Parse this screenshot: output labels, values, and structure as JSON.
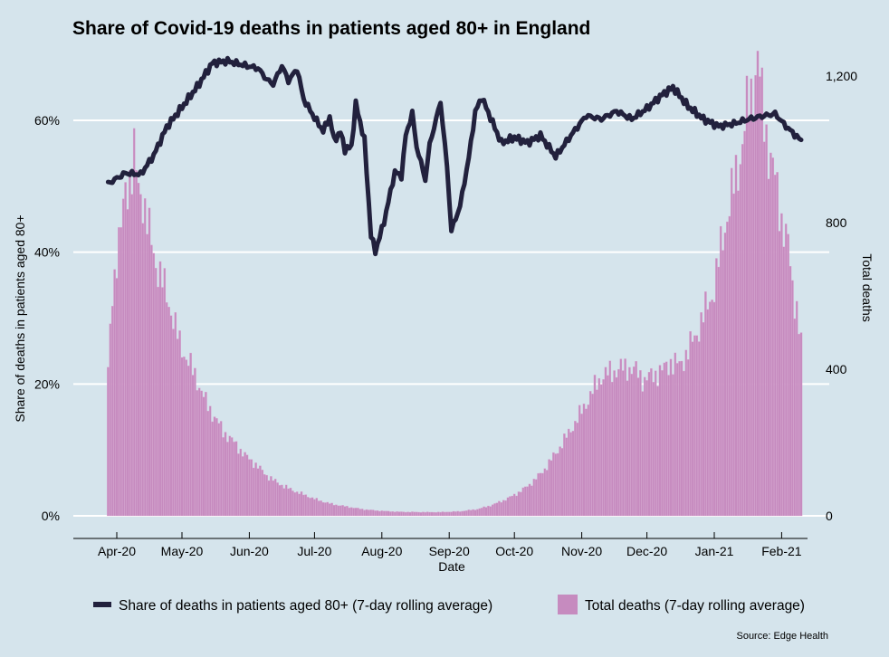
{
  "chart_data": {
    "type": "bar+line",
    "title": "Share of Covid-19 deaths in patients aged 80+ in England",
    "xlabel": "Date",
    "ylabel_left": "Share of deaths in patients aged 80+",
    "ylabel_right": "Total deaths",
    "source": "Source: Edge Health",
    "x_range": [
      "2020-03-20",
      "2021-02-22"
    ],
    "x_ticks": [
      {
        "date": "2020-04-01",
        "label": "Apr-20"
      },
      {
        "date": "2020-05-01",
        "label": "May-20"
      },
      {
        "date": "2020-06-01",
        "label": "Jun-20"
      },
      {
        "date": "2020-07-01",
        "label": "Jul-20"
      },
      {
        "date": "2020-08-01",
        "label": "Aug-20"
      },
      {
        "date": "2020-09-01",
        "label": "Sep-20"
      },
      {
        "date": "2020-10-01",
        "label": "Oct-20"
      },
      {
        "date": "2020-11-01",
        "label": "Nov-20"
      },
      {
        "date": "2020-12-01",
        "label": "Dec-20"
      },
      {
        "date": "2021-01-01",
        "label": "Jan-21"
      },
      {
        "date": "2021-02-01",
        "label": "Feb-21"
      }
    ],
    "y_left": {
      "range": [
        0,
        60
      ],
      "ticks": [
        0,
        20,
        40,
        60
      ],
      "tick_labels": [
        "0%",
        "20%",
        "40%",
        "60%"
      ]
    },
    "y_right": {
      "range": [
        0,
        1200
      ],
      "ticks": [
        0,
        400,
        800,
        1200
      ],
      "tick_labels": [
        "0",
        "400",
        "800",
        "1,200"
      ]
    },
    "grid": true,
    "legend_position": "bottom",
    "legend": [
      {
        "label": "Share of deaths in patients aged 80+ (7-day rolling average)",
        "type": "line",
        "color": "#22213d"
      },
      {
        "label": "Total deaths (7-day rolling average)",
        "type": "bar",
        "color": "#c68bbf"
      }
    ],
    "colors": {
      "background": "#d5e4ec",
      "line": "#22213d",
      "bar": "#c68bbf",
      "grid": "#ffffff"
    },
    "series": [
      {
        "name": "Share of deaths in patients aged 80+ (7-day rolling average)",
        "axis": "left",
        "unit": "%",
        "points": [
          [
            "2020-03-28",
            50.4
          ],
          [
            "2020-04-01",
            51.2
          ],
          [
            "2020-04-05",
            52.0
          ],
          [
            "2020-04-12",
            51.8
          ],
          [
            "2020-04-18",
            54.7
          ],
          [
            "2020-04-24",
            59.0
          ],
          [
            "2020-05-01",
            62.0
          ],
          [
            "2020-05-08",
            65.1
          ],
          [
            "2020-05-15",
            68.7
          ],
          [
            "2020-05-22",
            69.0
          ],
          [
            "2020-05-29",
            68.4
          ],
          [
            "2020-06-05",
            67.9
          ],
          [
            "2020-06-09",
            66.2
          ],
          [
            "2020-06-12",
            65.5
          ],
          [
            "2020-06-16",
            68.3
          ],
          [
            "2020-06-19",
            66.0
          ],
          [
            "2020-06-23",
            67.8
          ],
          [
            "2020-06-26",
            63.2
          ],
          [
            "2020-07-01",
            60.4
          ],
          [
            "2020-07-05",
            58.4
          ],
          [
            "2020-07-08",
            60.5
          ],
          [
            "2020-07-10",
            57.0
          ],
          [
            "2020-07-13",
            58.2
          ],
          [
            "2020-07-15",
            55.6
          ],
          [
            "2020-07-18",
            56.0
          ],
          [
            "2020-07-20",
            62.5
          ],
          [
            "2020-07-24",
            57.0
          ],
          [
            "2020-07-27",
            42.6
          ],
          [
            "2020-07-29",
            40.1
          ],
          [
            "2020-08-02",
            44.6
          ],
          [
            "2020-08-07",
            52.2
          ],
          [
            "2020-08-10",
            51.5
          ],
          [
            "2020-08-12",
            57.7
          ],
          [
            "2020-08-15",
            61.1
          ],
          [
            "2020-08-17",
            56.0
          ],
          [
            "2020-08-19",
            53.6
          ],
          [
            "2020-08-21",
            51.0
          ],
          [
            "2020-08-23",
            56.3
          ],
          [
            "2020-08-28",
            62.8
          ],
          [
            "2020-08-31",
            53.0
          ],
          [
            "2020-09-02",
            43.3
          ],
          [
            "2020-09-06",
            47.0
          ],
          [
            "2020-09-10",
            54.3
          ],
          [
            "2020-09-13",
            61.3
          ],
          [
            "2020-09-16",
            63.5
          ],
          [
            "2020-09-20",
            60.4
          ],
          [
            "2020-09-25",
            56.6
          ],
          [
            "2020-10-01",
            57.4
          ],
          [
            "2020-10-07",
            56.6
          ],
          [
            "2020-10-13",
            57.7
          ],
          [
            "2020-10-20",
            54.5
          ],
          [
            "2020-10-27",
            57.7
          ],
          [
            "2020-11-03",
            60.7
          ],
          [
            "2020-11-10",
            60.2
          ],
          [
            "2020-11-17",
            61.4
          ],
          [
            "2020-11-24",
            60.2
          ],
          [
            "2020-12-01",
            61.8
          ],
          [
            "2020-12-08",
            63.9
          ],
          [
            "2020-12-13",
            65.0
          ],
          [
            "2020-12-20",
            62.1
          ],
          [
            "2020-12-27",
            60.2
          ],
          [
            "2021-01-03",
            59.1
          ],
          [
            "2021-01-10",
            59.5
          ],
          [
            "2021-01-17",
            60.2
          ],
          [
            "2021-01-24",
            60.7
          ],
          [
            "2021-01-29",
            61.0
          ],
          [
            "2021-02-03",
            59.1
          ],
          [
            "2021-02-10",
            56.9
          ]
        ]
      },
      {
        "name": "Total deaths (7-day rolling average)",
        "axis": "right",
        "unit": "deaths",
        "points": [
          [
            "2020-03-28",
            390
          ],
          [
            "2020-03-30",
            610
          ],
          [
            "2020-04-01",
            710
          ],
          [
            "2020-04-03",
            780
          ],
          [
            "2020-04-05",
            890
          ],
          [
            "2020-04-08",
            940
          ],
          [
            "2020-04-09",
            980
          ],
          [
            "2020-04-11",
            890
          ],
          [
            "2020-04-13",
            870
          ],
          [
            "2020-04-16",
            770
          ],
          [
            "2020-04-19",
            690
          ],
          [
            "2020-04-22",
            640
          ],
          [
            "2020-04-26",
            560
          ],
          [
            "2020-04-30",
            470
          ],
          [
            "2020-05-04",
            420
          ],
          [
            "2020-05-08",
            370
          ],
          [
            "2020-05-12",
            310
          ],
          [
            "2020-05-16",
            270
          ],
          [
            "2020-05-20",
            230
          ],
          [
            "2020-05-25",
            200
          ],
          [
            "2020-05-30",
            165
          ],
          [
            "2020-06-04",
            140
          ],
          [
            "2020-06-09",
            110
          ],
          [
            "2020-06-14",
            90
          ],
          [
            "2020-06-20",
            72
          ],
          [
            "2020-06-26",
            58
          ],
          [
            "2020-07-02",
            44
          ],
          [
            "2020-07-09",
            32
          ],
          [
            "2020-07-16",
            25
          ],
          [
            "2020-07-23",
            18
          ],
          [
            "2020-07-30",
            14
          ],
          [
            "2020-08-08",
            11
          ],
          [
            "2020-08-18",
            10
          ],
          [
            "2020-08-28",
            10
          ],
          [
            "2020-09-06",
            12
          ],
          [
            "2020-09-14",
            18
          ],
          [
            "2020-09-20",
            28
          ],
          [
            "2020-09-26",
            42
          ],
          [
            "2020-10-02",
            60
          ],
          [
            "2020-10-08",
            85
          ],
          [
            "2020-10-14",
            120
          ],
          [
            "2020-10-20",
            170
          ],
          [
            "2020-10-26",
            225
          ],
          [
            "2020-11-01",
            285
          ],
          [
            "2020-11-06",
            340
          ],
          [
            "2020-11-10",
            380
          ],
          [
            "2020-11-14",
            390
          ],
          [
            "2020-11-18",
            400
          ],
          [
            "2020-11-22",
            405
          ],
          [
            "2020-11-26",
            395
          ],
          [
            "2020-11-30",
            370
          ],
          [
            "2020-12-04",
            385
          ],
          [
            "2020-12-08",
            395
          ],
          [
            "2020-12-12",
            420
          ],
          [
            "2020-12-16",
            410
          ],
          [
            "2020-12-20",
            450
          ],
          [
            "2020-12-24",
            500
          ],
          [
            "2020-12-28",
            560
          ],
          [
            "2021-01-01",
            620
          ],
          [
            "2021-01-04",
            730
          ],
          [
            "2021-01-07",
            820
          ],
          [
            "2021-01-10",
            900
          ],
          [
            "2021-01-13",
            980
          ],
          [
            "2021-01-16",
            1100
          ],
          [
            "2021-01-19",
            1170
          ],
          [
            "2021-01-21",
            1250
          ],
          [
            "2021-01-23",
            1130
          ],
          [
            "2021-01-26",
            1000
          ],
          [
            "2021-01-29",
            920
          ],
          [
            "2021-02-01",
            810
          ],
          [
            "2021-02-04",
            740
          ],
          [
            "2021-02-06",
            620
          ],
          [
            "2021-02-08",
            570
          ],
          [
            "2021-02-10",
            470
          ]
        ]
      }
    ]
  }
}
